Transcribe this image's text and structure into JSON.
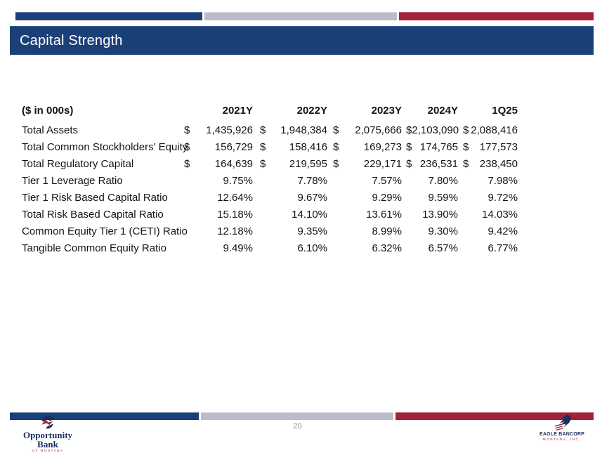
{
  "slide": {
    "title": "Capital Strength",
    "page_number": "20"
  },
  "table": {
    "unit_label": "($ in 000s)",
    "currency_symbol": "$",
    "columns": [
      "2021Y",
      "2022Y",
      "2023Y",
      "2024Y",
      "1Q25"
    ],
    "rows": [
      {
        "label": "Total Assets",
        "currency": true,
        "values": [
          "1,435,926",
          "1,948,384",
          "2,075,666",
          "2,103,090",
          "2,088,416"
        ]
      },
      {
        "label": "Total Common Stockholders' Equity",
        "currency": true,
        "values": [
          "156,729",
          "158,416",
          "169,273",
          "174,765",
          "177,573"
        ]
      },
      {
        "label": "Total Regulatory Capital",
        "currency": true,
        "values": [
          "164,639",
          "219,595",
          "229,171",
          "236,531",
          "238,450"
        ]
      },
      {
        "label": "Tier 1 Leverage Ratio",
        "currency": false,
        "values": [
          "9.75%",
          "7.78%",
          "7.57%",
          "7.80%",
          "7.98%"
        ]
      },
      {
        "label": "Tier 1 Risk Based Capital Ratio",
        "currency": false,
        "values": [
          "12.64%",
          "9.67%",
          "9.29%",
          "9.59%",
          "9.72%"
        ]
      },
      {
        "label": "Total Risk Based Capital Ratio",
        "currency": false,
        "values": [
          "15.18%",
          "14.10%",
          "13.61%",
          "13.90%",
          "14.03%"
        ]
      },
      {
        "label": "Common Equity Tier 1 (CETI) Ratio",
        "currency": false,
        "values": [
          "12.18%",
          "9.35%",
          "8.99%",
          "9.30%",
          "9.42%"
        ]
      },
      {
        "label": "Tangible Common Equity Ratio",
        "currency": false,
        "values": [
          "9.49%",
          "6.10%",
          "6.32%",
          "6.57%",
          "6.77%"
        ]
      }
    ]
  },
  "footer": {
    "left_logo": {
      "name": "Opportunity Bank",
      "subtext": "OF MONTANA"
    },
    "right_logo": {
      "name": "EAGLE BANCORP",
      "subtext": "MONTANA, INC."
    }
  },
  "colors": {
    "brand_blue": "#1B4078",
    "brand_gray": "#B9BDC9",
    "brand_red": "#A32139",
    "title_text": "#FFFFFF"
  }
}
